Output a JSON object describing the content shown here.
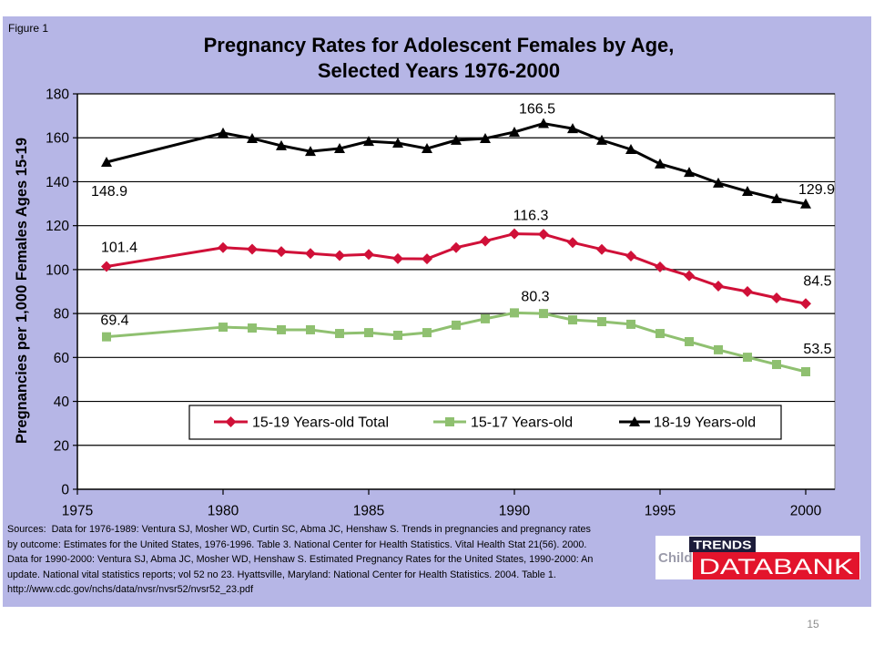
{
  "figure_label": "Figure 1",
  "colors": {
    "panel_background": "#b6b6e6",
    "plot_background": "#ffffff",
    "logo_red": "#e3142c",
    "logo_dark": "#1c1c3a",
    "logo_gray": "#9c9cab"
  },
  "chart_data": {
    "type": "line",
    "title": [
      "Pregnancy Rates for Adolescent Females by Age,",
      "Selected Years 1976-2000"
    ],
    "ylabel": "Pregnancies per 1,000 Females Ages 15-19",
    "x": [
      1976,
      1980,
      1981,
      1982,
      1983,
      1984,
      1985,
      1986,
      1987,
      1988,
      1989,
      1990,
      1991,
      1992,
      1993,
      1994,
      1995,
      1996,
      1997,
      1998,
      1999,
      2000
    ],
    "xlim": [
      1975,
      2001
    ],
    "xticks": [
      1975,
      1980,
      1985,
      1990,
      1995,
      2000
    ],
    "ylim": [
      0,
      180
    ],
    "yticks": [
      0,
      20,
      40,
      60,
      80,
      100,
      120,
      140,
      160,
      180
    ],
    "grid": true,
    "legend": "lower-center",
    "series": [
      {
        "name": "15-19 Years-old Total",
        "color": "#d01038",
        "marker": "diamond",
        "values": [
          101.4,
          110.0,
          109.3,
          108.2,
          107.3,
          106.4,
          106.9,
          105.0,
          104.9,
          110.0,
          113.0,
          116.3,
          116.1,
          112.3,
          109.2,
          106.2,
          101.2,
          97.2,
          92.5,
          90.0,
          87.1,
          84.5
        ],
        "data_labels": [
          {
            "x": 1976,
            "text": "101.4"
          },
          {
            "x": 1990,
            "text": "116.3"
          },
          {
            "x": 2000,
            "text": "84.5"
          }
        ]
      },
      {
        "name": "15-17 Years-old",
        "color": "#8fc070",
        "marker": "square",
        "values": [
          69.4,
          73.8,
          73.4,
          72.6,
          72.6,
          70.9,
          71.3,
          70.1,
          71.3,
          74.7,
          77.6,
          80.3,
          80.0,
          77.1,
          76.3,
          75.1,
          70.9,
          67.2,
          63.5,
          60.1,
          56.8,
          53.5
        ],
        "data_labels": [
          {
            "x": 1976,
            "text": "69.4"
          },
          {
            "x": 1990,
            "text": "80.3"
          },
          {
            "x": 2000,
            "text": "53.5"
          }
        ]
      },
      {
        "name": "18-19 Years-old",
        "color": "#000000",
        "marker": "triangle",
        "values": [
          148.9,
          162.2,
          159.7,
          156.4,
          153.8,
          155.1,
          158.4,
          157.6,
          155.1,
          158.9,
          159.7,
          162.6,
          166.5,
          164.2,
          158.9,
          154.7,
          148.1,
          144.3,
          139.4,
          135.6,
          132.3,
          129.9
        ],
        "data_labels": [
          {
            "x": 1976,
            "text": "148.9"
          },
          {
            "x": 1991,
            "text": "166.5"
          },
          {
            "x": 2000,
            "text": "129.9"
          }
        ]
      }
    ]
  },
  "sources": [
    "Sources:  Data for 1976-1989: Ventura SJ, Mosher WD, Curtin SC, Abma JC, Henshaw S. Trends in pregnancies and pregnancy rates",
    "by outcome: Estimates for the United States, 1976-1996. Table 3. National Center for Health Statistics. Vital Health Stat 21(56). 2000.",
    "Data for 1990-2000: Ventura SJ, Abma JC, Mosher WD, Henshaw S. Estimated Pregnancy Rates for the United States, 1990-2000: An",
    "update. National vital statistics reports; vol 52 no 23. Hyattsville, Maryland: National Center for Health Statistics. 2004. Table 1.",
    "http://www.cdc.gov/nchs/data/nvsr/nvsr52/nvsr52_23.pdf"
  ],
  "logo": {
    "child": "Child",
    "trends": "TRENDS",
    "databank": "DATABANK"
  },
  "page_number": "15"
}
